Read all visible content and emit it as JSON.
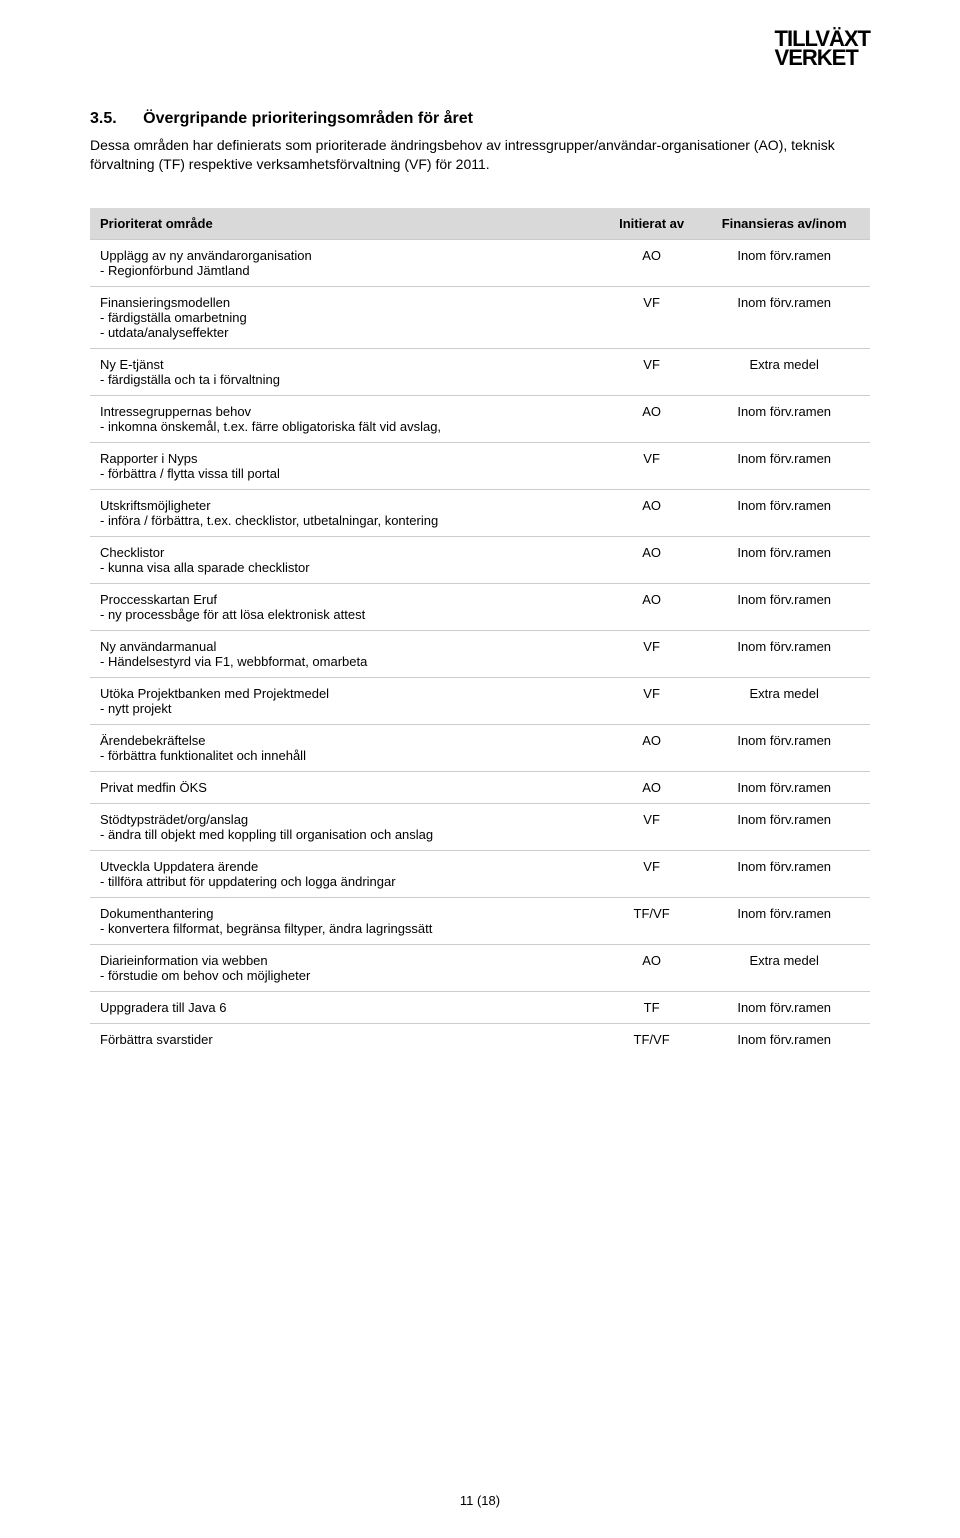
{
  "logo": {
    "line1": "TILLVÄXT",
    "line2": "VERKET"
  },
  "heading": {
    "number": "3.5.",
    "title": "Övergripande prioriteringsområden för året"
  },
  "intro": "Dessa områden har definierats som prioriterade ändringsbehov av intressgrupper/användar-organisationer (AO), teknisk förvaltning (TF) respektive verksamhetsförvaltning (VF) för 2011.",
  "table": {
    "headers": {
      "col1": "Prioriterat område",
      "col2": "Initierat av",
      "col3": "Finansieras av/inom"
    },
    "rows": [
      {
        "title": "Upplägg av ny användarorganisation",
        "desc": "- Regionförbund Jämtland",
        "col2": "AO",
        "col3": "Inom förv.ramen"
      },
      {
        "title": "Finansieringsmodellen",
        "desc": "- färdigställa omarbetning\n- utdata/analyseffekter",
        "col2": "VF",
        "col3": "Inom förv.ramen"
      },
      {
        "title": "Ny E-tjänst",
        "desc": "- färdigställa och ta i förvaltning",
        "col2": "VF",
        "col3": "Extra medel"
      },
      {
        "title": "Intressegruppernas behov",
        "desc": "- inkomna önskemål, t.ex. färre obligatoriska fält vid avslag,",
        "col2": "AO",
        "col3": "Inom förv.ramen"
      },
      {
        "title": "Rapporter i Nyps",
        "desc": "- förbättra / flytta vissa till portal",
        "col2": "VF",
        "col3": "Inom förv.ramen"
      },
      {
        "title": "Utskriftsmöjligheter",
        "desc": "- införa / förbättra, t.ex. checklistor, utbetalningar, kontering",
        "col2": "AO",
        "col3": "Inom förv.ramen"
      },
      {
        "title": "Checklistor",
        "desc": "- kunna visa alla sparade checklistor",
        "col2": "AO",
        "col3": "Inom förv.ramen"
      },
      {
        "title": "Proccesskartan Eruf",
        "desc": "- ny processbåge för att lösa elektronisk attest",
        "col2": "AO",
        "col3": "Inom förv.ramen"
      },
      {
        "title": "Ny användarmanual",
        "desc": "- Händelsestyrd via F1, webbformat, omarbeta",
        "col2": "VF",
        "col3": "Inom förv.ramen"
      },
      {
        "title": "Utöka Projektbanken med Projektmedel",
        "desc": "- nytt projekt",
        "col2": "VF",
        "col3": "Extra medel"
      },
      {
        "title": "Ärendebekräftelse",
        "desc": "- förbättra funktionalitet och innehåll",
        "col2": "AO",
        "col3": "Inom förv.ramen"
      },
      {
        "title": "Privat medfin ÖKS",
        "desc": "",
        "col2": "AO",
        "col3": "Inom förv.ramen"
      },
      {
        "title": "Stödtypsträdet/org/anslag",
        "desc": "- ändra till objekt med koppling till organisation och anslag",
        "col2": "VF",
        "col3": "Inom förv.ramen"
      },
      {
        "title": "Utveckla Uppdatera ärende",
        "desc": "- tillföra attribut för uppdatering och logga ändringar",
        "col2": "VF",
        "col3": "Inom förv.ramen"
      },
      {
        "title": "Dokumenthantering",
        "desc": "- konvertera filformat, begränsa filtyper, ändra lagringssätt",
        "col2": "TF/VF",
        "col3": "Inom förv.ramen"
      },
      {
        "title": "Diarieinformation via webben",
        "desc": "- förstudie om behov och möjligheter",
        "col2": "AO",
        "col3": "Extra medel"
      },
      {
        "title": "Uppgradera till Java 6",
        "desc": "",
        "col2": "TF",
        "col3": "Inom förv.ramen"
      },
      {
        "title": "Förbättra svarstider",
        "desc": "",
        "col2": "TF/VF",
        "col3": "Inom förv.ramen"
      }
    ]
  },
  "page_number": "11 (18)"
}
